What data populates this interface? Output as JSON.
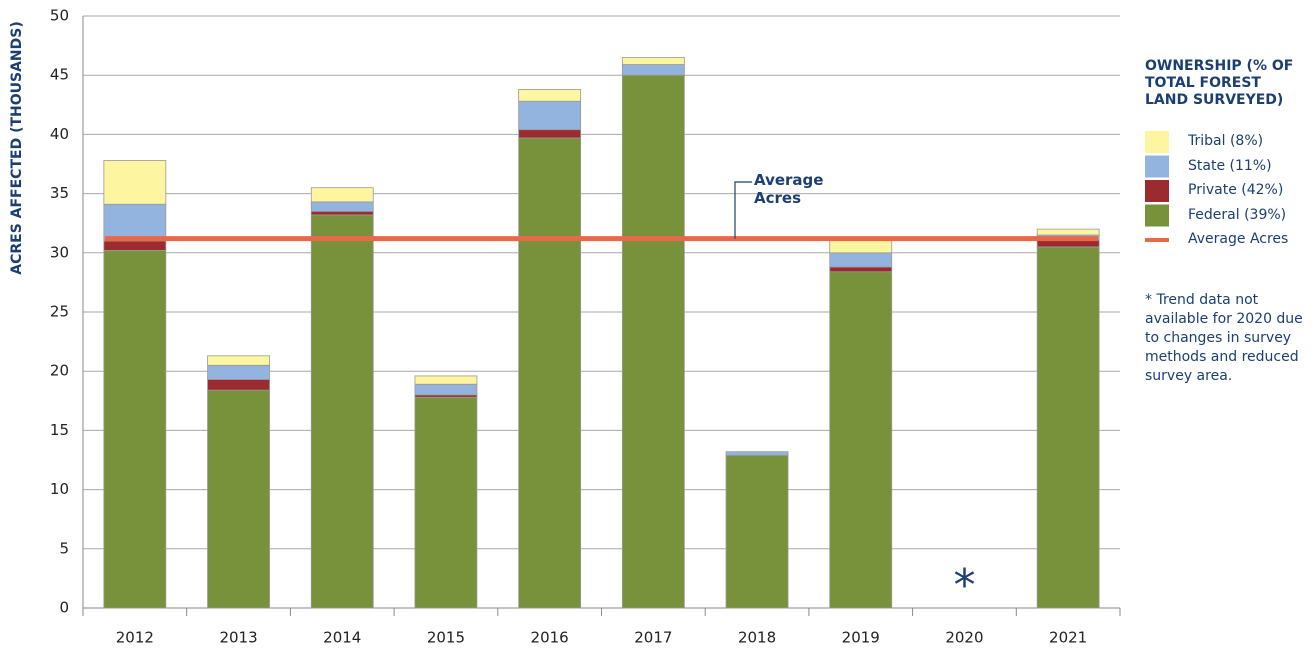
{
  "chart_data": {
    "type": "stacked_bar",
    "y_axis_label": "ACRES AFFECTED (THOUSANDS)",
    "legend_title": "OWNERSHIP (% OF TOTAL FOREST LAND SURVEYED)",
    "categories": [
      "2012",
      "2013",
      "2014",
      "2015",
      "2016",
      "2017",
      "2018",
      "2019",
      "2020",
      "2021"
    ],
    "series": [
      {
        "name": "Federal (39%)",
        "color": "#77923a",
        "values": [
          30.2,
          18.4,
          33.2,
          17.8,
          39.7,
          45.0,
          12.9,
          28.4,
          null,
          30.5
        ]
      },
      {
        "name": "Private (42%)",
        "color": "#9b2b2e",
        "values": [
          0.8,
          0.9,
          0.3,
          0.2,
          0.7,
          0,
          0,
          0.4,
          null,
          0.6
        ]
      },
      {
        "name": "State (11%)",
        "color": "#94b4e0",
        "values": [
          3.1,
          1.2,
          0.8,
          0.9,
          2.4,
          0.9,
          0.3,
          1.2,
          null,
          0.4
        ]
      },
      {
        "name": "Tribal (8%)",
        "color": "#fdf5a0",
        "values": [
          3.7,
          0.8,
          1.2,
          0.7,
          1.0,
          0.6,
          0,
          1.1,
          null,
          0.5
        ]
      }
    ],
    "average": {
      "name": "Average Acres",
      "label": "Average Acres",
      "value": 31.2,
      "color": "#e8694a"
    },
    "missing_marker": "*",
    "note": "* Trend data not available for 2020 due to changes in survey methods and reduced survey area.",
    "ylim": [
      0,
      50
    ],
    "yticks": [
      0,
      5,
      10,
      15,
      20,
      25,
      30,
      35,
      40,
      45,
      50
    ],
    "grid": true
  }
}
